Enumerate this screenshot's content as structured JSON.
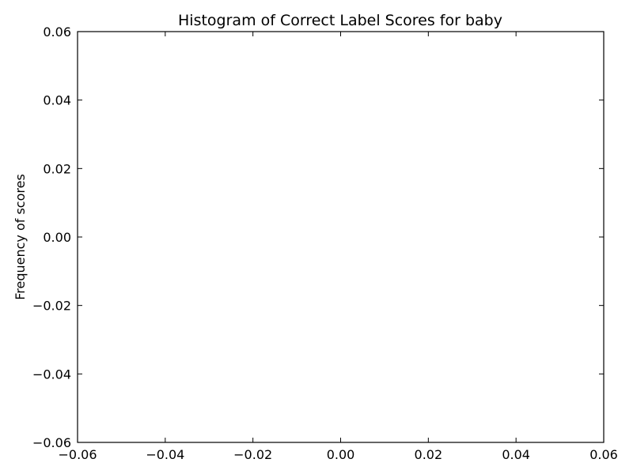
{
  "chart_data": {
    "type": "bar",
    "title": "Histogram of Correct Label Scores for baby",
    "xlabel": "",
    "ylabel": "Frequency of scores",
    "xlim": [
      -0.06,
      0.06
    ],
    "ylim": [
      -0.06,
      0.06
    ],
    "x_ticks": [
      "−0.06",
      "−0.04",
      "−0.02",
      "0.00",
      "0.02",
      "0.04",
      "0.06"
    ],
    "y_ticks": [
      "0.06",
      "0.04",
      "0.02",
      "0.00",
      "−0.02",
      "−0.04",
      "−0.06"
    ],
    "x_tick_values": [
      -0.06,
      -0.04,
      -0.02,
      0.0,
      0.02,
      0.04,
      0.06
    ],
    "y_tick_values": [
      0.06,
      0.04,
      0.02,
      0.0,
      -0.02,
      -0.04,
      -0.06
    ],
    "values": [],
    "grid": false,
    "colors": {
      "axis": "#000000",
      "background": "#ffffff"
    }
  }
}
